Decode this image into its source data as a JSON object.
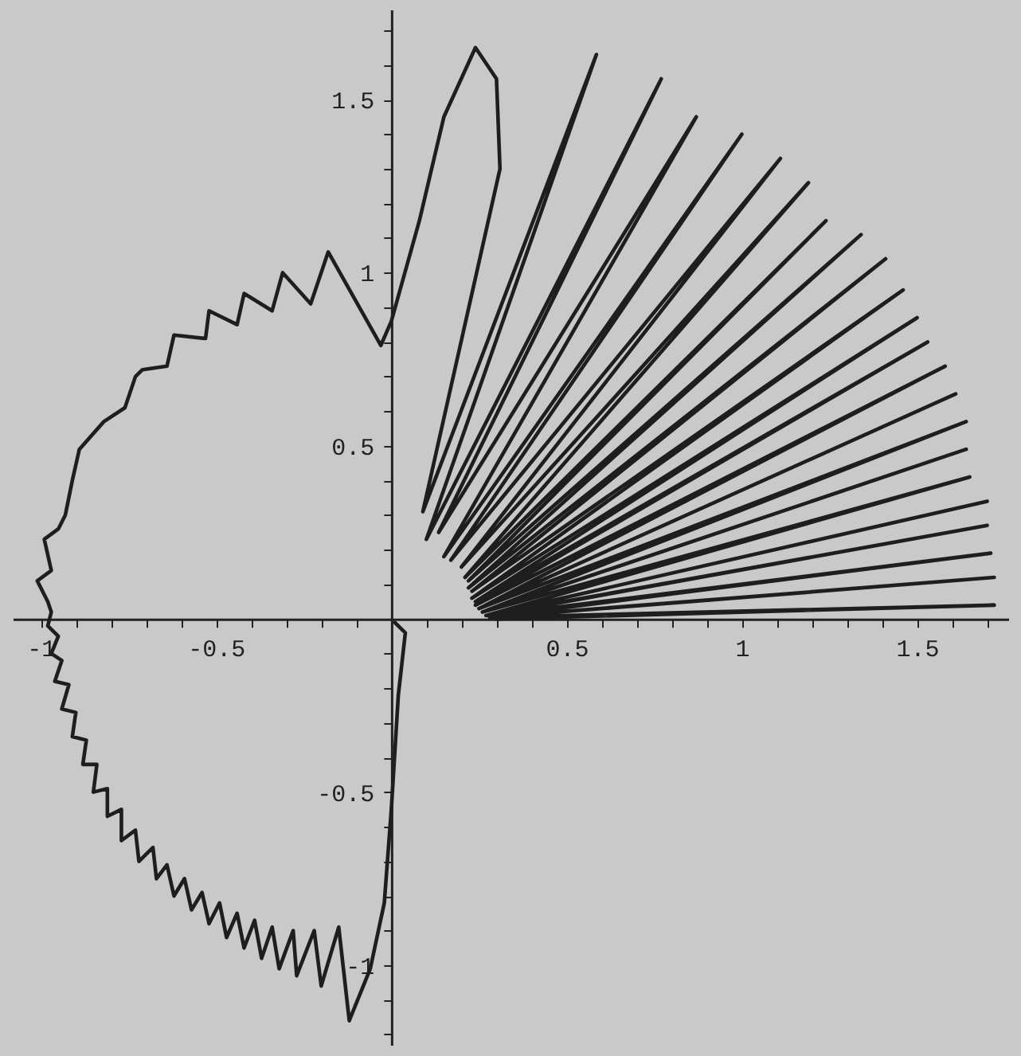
{
  "chart_data": {
    "type": "line",
    "line_style": "solid",
    "xlim": [
      -1.08,
      1.76
    ],
    "ylim": [
      -1.23,
      1.76
    ],
    "xticks": [
      {
        "value": -1,
        "label": "-1"
      },
      {
        "value": -0.9,
        "label": null
      },
      {
        "value": -0.8,
        "label": null
      },
      {
        "value": -0.7,
        "label": null
      },
      {
        "value": -0.6,
        "label": null
      },
      {
        "value": -0.5,
        "label": "-0.5"
      },
      {
        "value": -0.4,
        "label": null
      },
      {
        "value": -0.3,
        "label": null
      },
      {
        "value": -0.2,
        "label": null
      },
      {
        "value": -0.1,
        "label": null
      },
      {
        "value": 0.1,
        "label": null
      },
      {
        "value": 0.2,
        "label": null
      },
      {
        "value": 0.3,
        "label": null
      },
      {
        "value": 0.4,
        "label": null
      },
      {
        "value": 0.5,
        "label": "0.5"
      },
      {
        "value": 0.6,
        "label": null
      },
      {
        "value": 0.7,
        "label": null
      },
      {
        "value": 0.8,
        "label": null
      },
      {
        "value": 0.9,
        "label": null
      },
      {
        "value": 1,
        "label": "1"
      },
      {
        "value": 1.1,
        "label": null
      },
      {
        "value": 1.2,
        "label": null
      },
      {
        "value": 1.3,
        "label": null
      },
      {
        "value": 1.4,
        "label": null
      },
      {
        "value": 1.5,
        "label": "1.5"
      },
      {
        "value": 1.6,
        "label": null
      },
      {
        "value": 1.7,
        "label": null
      }
    ],
    "yticks": [
      {
        "value": -1.2,
        "label": null
      },
      {
        "value": -1.1,
        "label": null
      },
      {
        "value": -1,
        "label": "-1"
      },
      {
        "value": -0.9,
        "label": null
      },
      {
        "value": -0.8,
        "label": null
      },
      {
        "value": -0.7,
        "label": null
      },
      {
        "value": -0.6,
        "label": null
      },
      {
        "value": -0.5,
        "label": "-0.5"
      },
      {
        "value": -0.4,
        "label": null
      },
      {
        "value": -0.3,
        "label": null
      },
      {
        "value": -0.2,
        "label": null
      },
      {
        "value": -0.1,
        "label": null
      },
      {
        "value": 0.1,
        "label": null
      },
      {
        "value": 0.2,
        "label": null
      },
      {
        "value": 0.3,
        "label": null
      },
      {
        "value": 0.4,
        "label": null
      },
      {
        "value": 0.5,
        "label": "0.5"
      },
      {
        "value": 0.6,
        "label": null
      },
      {
        "value": 0.7,
        "label": null
      },
      {
        "value": 0.8,
        "label": null
      },
      {
        "value": 0.9,
        "label": null
      },
      {
        "value": 1,
        "label": "1"
      },
      {
        "value": 1.1,
        "label": null
      },
      {
        "value": 1.2,
        "label": null
      },
      {
        "value": 1.3,
        "label": null
      },
      {
        "value": 1.4,
        "label": null
      },
      {
        "value": 1.5,
        "label": "1.5"
      },
      {
        "value": 1.6,
        "label": null
      },
      {
        "value": 1.7,
        "label": null
      }
    ],
    "series": [
      {
        "color": "#1e1e1e",
        "x": [
          0.01,
          0.04,
          0.02,
          0,
          -0.02,
          -0.06,
          -0.12,
          -0.15,
          -0.2,
          -0.22,
          -0.27,
          -0.28,
          -0.32,
          -0.34,
          -0.37,
          -0.39,
          -0.42,
          -0.44,
          -0.47,
          -0.49,
          -0.52,
          -0.54,
          -0.57,
          -0.59,
          -0.62,
          -0.64,
          -0.67,
          -0.68,
          -0.72,
          -0.73,
          -0.77,
          -0.77,
          -0.81,
          -0.81,
          -0.85,
          -0.84,
          -0.88,
          -0.87,
          -0.91,
          -0.9,
          -0.94,
          -0.92,
          -0.96,
          -0.94,
          -0.97,
          -0.95,
          -0.98,
          -0.97,
          -0.98,
          -1.01,
          -0.97,
          -0.99,
          -0.95,
          -0.93,
          -0.91,
          -0.89,
          -0.82,
          -0.76,
          -0.73,
          -0.71,
          -0.64,
          -0.62,
          -0.53,
          -0.52,
          -0.44,
          -0.42,
          -0.34,
          -0.31,
          -0.23,
          -0.18,
          -0.03,
          0,
          0.08,
          0.15,
          0.24,
          0.3,
          0.31,
          0.09,
          0.585,
          0.1,
          0.77,
          0.135,
          0.87,
          0.15,
          1,
          0.17,
          1.11,
          0.2,
          1.19,
          0.21,
          1.24,
          0.22,
          1.34,
          0.22,
          1.41,
          0.23,
          1.46,
          0.23,
          1.5,
          0.24,
          1.53,
          0.24,
          1.58,
          0.25,
          1.61,
          0.25,
          1.64,
          0.26,
          1.64,
          0.26,
          1.65,
          0.27,
          1.7,
          0.27,
          1.7,
          0.28,
          1.71,
          0.28,
          1.72,
          0.29,
          1.72,
          0.3
        ],
        "values": [
          -0.01,
          -0.04,
          -0.22,
          -0.55,
          -0.82,
          -1.01,
          -1.16,
          -0.89,
          -1.06,
          -0.9,
          -1.03,
          -0.9,
          -1.01,
          -0.89,
          -0.98,
          -0.87,
          -0.95,
          -0.85,
          -0.92,
          -0.82,
          -0.88,
          -0.79,
          -0.84,
          -0.75,
          -0.8,
          -0.71,
          -0.75,
          -0.66,
          -0.7,
          -0.61,
          -0.64,
          -0.55,
          -0.57,
          -0.49,
          -0.5,
          -0.42,
          -0.42,
          -0.35,
          -0.34,
          -0.27,
          -0.26,
          -0.19,
          -0.18,
          -0.12,
          -0.1,
          -0.05,
          -0.02,
          0.02,
          0.05,
          0.11,
          0.14,
          0.23,
          0.26,
          0.3,
          0.4,
          0.49,
          0.57,
          0.61,
          0.7,
          0.72,
          0.73,
          0.82,
          0.81,
          0.89,
          0.85,
          0.94,
          0.89,
          1,
          0.91,
          1.06,
          0.79,
          0.86,
          1.15,
          1.45,
          1.65,
          1.56,
          1.3,
          0.31,
          1.63,
          0.23,
          1.56,
          0.25,
          1.45,
          0.18,
          1.4,
          0.17,
          1.33,
          0.15,
          1.26,
          0.12,
          1.15,
          0.11,
          1.11,
          0.09,
          1.04,
          0.08,
          0.95,
          0.06,
          0.87,
          0.05,
          0.8,
          0.04,
          0.73,
          0.03,
          0.65,
          0.03,
          0.57,
          0.02,
          0.49,
          0.02,
          0.41,
          0.01,
          0.34,
          0.01,
          0.27,
          0.01,
          0.19,
          0.005,
          0.12,
          0.005,
          0.04,
          0
        ]
      }
    ]
  }
}
